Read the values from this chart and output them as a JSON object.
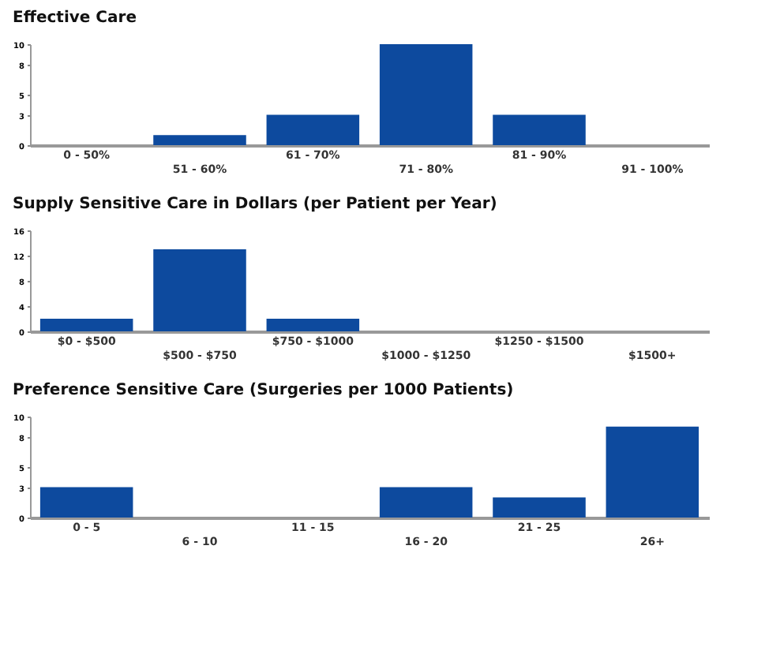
{
  "chart_data": [
    {
      "type": "bar",
      "title": "Effective Care",
      "categories": [
        "0 - 50%",
        "51 - 60%",
        "61 - 70%",
        "71 - 80%",
        "81 - 90%",
        "91 - 100%"
      ],
      "values": [
        0,
        1,
        3,
        10,
        3,
        0
      ],
      "color": "#0d4a9e",
      "ylim": [
        0,
        10
      ],
      "yticks": [
        0,
        3,
        5,
        8,
        10
      ],
      "grid": false
    },
    {
      "type": "bar",
      "title": "Supply Sensitive Care in Dollars (per Patient per Year)",
      "categories": [
        "$0 - $500",
        "$500 - $750",
        "$750 - $1000",
        "$1000 - $1250",
        "$1250 - $1500",
        "$1500+"
      ],
      "values": [
        2,
        13,
        2,
        0,
        0,
        0
      ],
      "color": "#0d4a9e",
      "ylim": [
        0,
        16
      ],
      "yticks": [
        0,
        4,
        8,
        12,
        16
      ],
      "grid": false
    },
    {
      "type": "bar",
      "title": "Preference Sensitive Care (Surgeries per 1000 Patients)",
      "categories": [
        "0 - 5",
        "6 - 10",
        "11 - 15",
        "16 - 20",
        "21 - 25",
        "26+"
      ],
      "values": [
        3,
        0,
        0,
        3,
        2,
        9
      ],
      "color": "#0d4a9e",
      "ylim": [
        0,
        10
      ],
      "yticks": [
        0,
        3,
        5,
        8,
        10
      ],
      "grid": false
    }
  ]
}
